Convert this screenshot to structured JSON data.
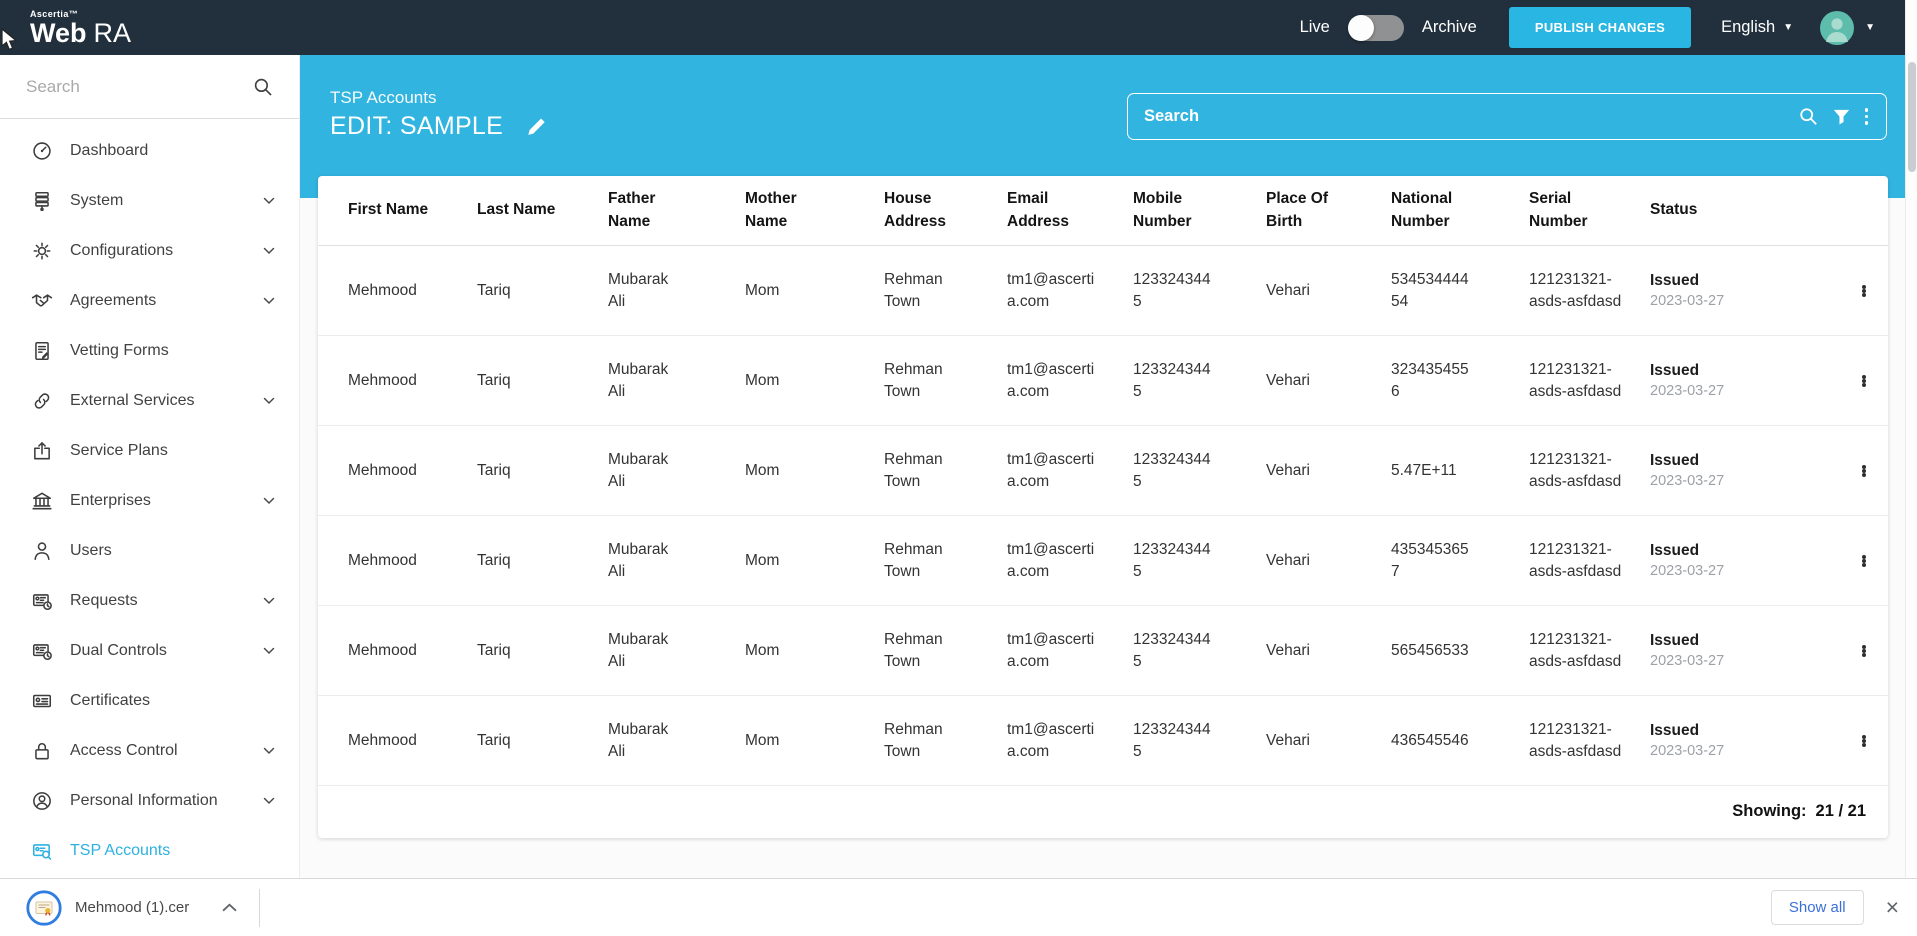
{
  "topbar": {
    "brand_small": "Ascertia™",
    "brand_web": "Web",
    "brand_ra": "RA",
    "live_label": "Live",
    "archive_label": "Archive",
    "publish_button": "PUBLISH CHANGES",
    "language": "English"
  },
  "sidebar": {
    "search_placeholder": "Search",
    "items": [
      {
        "label": "Dashboard",
        "icon": "dashboard",
        "expandable": false,
        "active": false
      },
      {
        "label": "System",
        "icon": "system",
        "expandable": true,
        "active": false
      },
      {
        "label": "Configurations",
        "icon": "gear",
        "expandable": true,
        "active": false
      },
      {
        "label": "Agreements",
        "icon": "handshake",
        "expandable": true,
        "active": false
      },
      {
        "label": "Vetting Forms",
        "icon": "document-pen",
        "expandable": false,
        "active": false
      },
      {
        "label": "External Services",
        "icon": "link",
        "expandable": true,
        "active": false
      },
      {
        "label": "Service Plans",
        "icon": "box-arrow",
        "expandable": false,
        "active": false
      },
      {
        "label": "Enterprises",
        "icon": "bank",
        "expandable": true,
        "active": false
      },
      {
        "label": "Users",
        "icon": "user",
        "expandable": false,
        "active": false
      },
      {
        "label": "Requests",
        "icon": "card-clock",
        "expandable": true,
        "active": false
      },
      {
        "label": "Dual Controls",
        "icon": "card-clock",
        "expandable": true,
        "active": false
      },
      {
        "label": "Certificates",
        "icon": "card",
        "expandable": false,
        "active": false
      },
      {
        "label": "Access Control",
        "icon": "lock",
        "expandable": true,
        "active": false
      },
      {
        "label": "Personal Information",
        "icon": "person-circle",
        "expandable": true,
        "active": false
      },
      {
        "label": "TSP Accounts",
        "icon": "certificate-search",
        "expandable": false,
        "active": true
      }
    ]
  },
  "page_header": {
    "breadcrumb": "TSP Accounts",
    "title": "EDIT: SAMPLE",
    "search_placeholder": "Search"
  },
  "table": {
    "columns": [
      "First Name",
      "Last Name",
      "Father Name",
      "Mother Name",
      "House Address",
      "Email Address",
      "Mobile Number",
      "Place Of Birth",
      "National Number",
      "Serial Number",
      "Status"
    ],
    "rows": [
      {
        "first_name": "Mehmood",
        "last_name": "Tariq",
        "father_name": "Mubarak Ali",
        "mother_name": "Mom",
        "house_address": "Rehman Town",
        "email_address": "tm1@ascertia.com",
        "mobile_number": "1233243445",
        "place_of_birth": "Vehari",
        "national_number": "53453444454",
        "serial_number": "121231321-asds-asfdasd",
        "status": "Issued",
        "status_date": "2023-03-27"
      },
      {
        "first_name": "Mehmood",
        "last_name": "Tariq",
        "father_name": "Mubarak Ali",
        "mother_name": "Mom",
        "house_address": "Rehman Town",
        "email_address": "tm1@ascertia.com",
        "mobile_number": "1233243445",
        "place_of_birth": "Vehari",
        "national_number": "3234354556",
        "serial_number": "121231321-asds-asfdasd",
        "status": "Issued",
        "status_date": "2023-03-27"
      },
      {
        "first_name": "Mehmood",
        "last_name": "Tariq",
        "father_name": "Mubarak Ali",
        "mother_name": "Mom",
        "house_address": "Rehman Town",
        "email_address": "tm1@ascertia.com",
        "mobile_number": "1233243445",
        "place_of_birth": "Vehari",
        "national_number": "5.47E+11",
        "serial_number": "121231321-asds-asfdasd",
        "status": "Issued",
        "status_date": "2023-03-27"
      },
      {
        "first_name": "Mehmood",
        "last_name": "Tariq",
        "father_name": "Mubarak Ali",
        "mother_name": "Mom",
        "house_address": "Rehman Town",
        "email_address": "tm1@ascertia.com",
        "mobile_number": "1233243445",
        "place_of_birth": "Vehari",
        "national_number": "4353453657",
        "serial_number": "121231321-asds-asfdasd",
        "status": "Issued",
        "status_date": "2023-03-27"
      },
      {
        "first_name": "Mehmood",
        "last_name": "Tariq",
        "father_name": "Mubarak Ali",
        "mother_name": "Mom",
        "house_address": "Rehman Town",
        "email_address": "tm1@ascertia.com",
        "mobile_number": "1233243445",
        "place_of_birth": "Vehari",
        "national_number": "565456533",
        "serial_number": "121231321-asds-asfdasd",
        "status": "Issued",
        "status_date": "2023-03-27"
      },
      {
        "first_name": "Mehmood",
        "last_name": "Tariq",
        "father_name": "Mubarak Ali",
        "mother_name": "Mom",
        "house_address": "Rehman Town",
        "email_address": "tm1@ascertia.com",
        "mobile_number": "1233243445",
        "place_of_birth": "Vehari",
        "national_number": "436545546",
        "serial_number": "121231321-asds-asfdasd",
        "status": "Issued",
        "status_date": "2023-03-27"
      }
    ],
    "showing_label": "Showing:",
    "showing_value": "21 / 21"
  },
  "downloads_bar": {
    "file_name": "Mehmood (1).cer",
    "show_all_label": "Show all",
    "close_glyph": "×"
  },
  "colors": {
    "topbar_navy": "#22303e",
    "accent_cyan": "#31b4e0",
    "publish_cyan": "#2ab6e2",
    "active_link_cyan": "#2eb1e0",
    "download_blue": "#3b6fd8"
  }
}
